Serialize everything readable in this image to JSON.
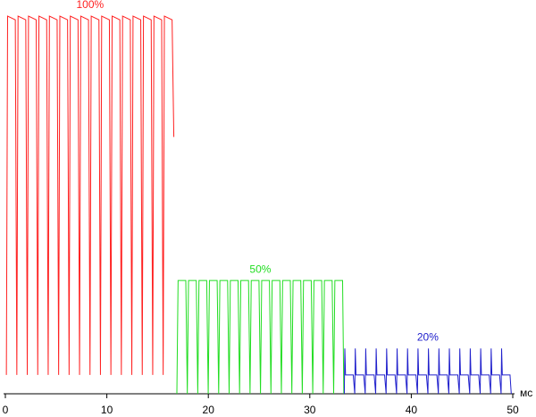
{
  "chart_data": {
    "type": "line",
    "x_label": "мс",
    "xlim": [
      0,
      50
    ],
    "xticks": [
      0,
      10,
      20,
      30,
      40,
      50
    ],
    "ylim": [
      0,
      100
    ],
    "series": [
      {
        "name": "100%",
        "color": "#ff2020",
        "x": [
          0.1,
          0.22,
          0.98,
          1.13,
          1.25,
          2.01,
          2.16,
          2.28,
          3.04,
          3.19,
          3.31,
          4.07,
          4.22,
          4.34,
          5.1,
          5.25,
          5.37,
          6.13,
          6.28,
          6.4,
          7.16,
          7.31,
          7.43,
          8.19,
          8.34,
          8.46,
          9.22,
          9.37,
          9.49,
          10.25,
          10.4,
          10.52,
          11.28,
          11.43,
          11.55,
          12.31,
          12.46,
          12.58,
          13.34,
          13.49,
          13.61,
          14.37,
          14.52,
          14.64,
          15.4,
          15.55,
          15.67,
          16.43,
          16.6
        ],
        "values": [
          5,
          100,
          99,
          5,
          100,
          99,
          5,
          100,
          99,
          5,
          100,
          99,
          5,
          100,
          99,
          5,
          100,
          99,
          5,
          100,
          99,
          5,
          100,
          99,
          5,
          100,
          99,
          5,
          100,
          99,
          5,
          100,
          99,
          5,
          100,
          99,
          5,
          100,
          99,
          5,
          100,
          99,
          5,
          100,
          99,
          5,
          100,
          99,
          68
        ]
      },
      {
        "name": "50%",
        "color": "#22dd22",
        "x": [
          16.9,
          17.02,
          17.78,
          17.93,
          18.05,
          18.81,
          18.96,
          19.08,
          19.84,
          19.99,
          20.11,
          20.87,
          21.02,
          21.14,
          21.9,
          22.05,
          22.17,
          22.93,
          23.08,
          23.2,
          23.96,
          24.11,
          24.23,
          24.99,
          25.14,
          25.26,
          26.02,
          26.17,
          26.29,
          27.05,
          27.2,
          27.32,
          28.08,
          28.23,
          28.35,
          29.11,
          29.26,
          29.38,
          30.14,
          30.29,
          30.41,
          31.17,
          31.32,
          31.44,
          32.2,
          32.35,
          32.47,
          33.23,
          33.35
        ],
        "values": [
          0,
          30,
          30,
          0,
          30,
          30,
          0,
          30,
          30,
          0,
          30,
          30,
          0,
          30,
          30,
          0,
          30,
          30,
          0,
          30,
          30,
          0,
          30,
          30,
          0,
          30,
          30,
          0,
          30,
          30,
          0,
          30,
          30,
          0,
          30,
          30,
          0,
          30,
          30,
          0,
          30,
          30,
          0,
          30,
          30,
          0,
          30,
          30,
          0
        ]
      },
      {
        "name": "20%",
        "color": "#2020cc",
        "x": [
          33.4,
          33.45,
          33.52,
          34.28,
          34.43,
          34.48,
          34.55,
          35.31,
          35.46,
          35.51,
          35.58,
          36.34,
          36.49,
          36.54,
          36.61,
          37.37,
          37.52,
          37.57,
          37.64,
          38.4,
          38.55,
          38.6,
          38.67,
          39.43,
          39.58,
          39.63,
          39.7,
          40.46,
          40.61,
          40.66,
          40.73,
          41.49,
          41.64,
          41.69,
          41.76,
          42.52,
          42.67,
          42.72,
          42.79,
          43.55,
          43.7,
          43.75,
          43.82,
          44.58,
          44.73,
          44.78,
          44.85,
          45.61,
          45.76,
          45.81,
          45.88,
          46.64,
          46.79,
          46.84,
          46.91,
          47.67,
          47.82,
          47.87,
          47.94,
          48.7,
          48.85,
          48.9,
          48.97,
          49.73,
          49.85
        ],
        "values": [
          0,
          12,
          5,
          5,
          0,
          12,
          5,
          5,
          0,
          12,
          5,
          5,
          0,
          12,
          5,
          5,
          0,
          12,
          5,
          5,
          0,
          12,
          5,
          5,
          0,
          12,
          5,
          5,
          0,
          12,
          5,
          5,
          0,
          12,
          5,
          5,
          0,
          12,
          5,
          5,
          0,
          12,
          5,
          5,
          0,
          12,
          5,
          5,
          0,
          12,
          5,
          5,
          0,
          12,
          5,
          5,
          0,
          12,
          5,
          5,
          0,
          12,
          5,
          5,
          0
        ]
      }
    ]
  }
}
